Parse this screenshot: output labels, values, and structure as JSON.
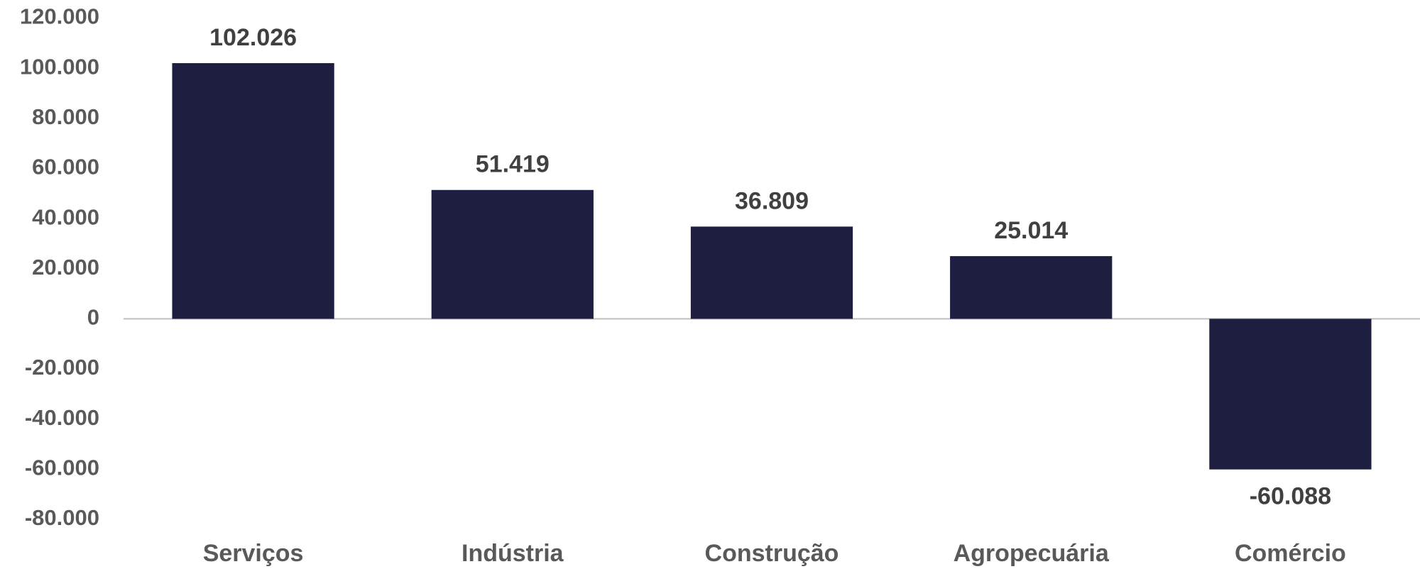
{
  "chart_data": {
    "type": "bar",
    "categories": [
      "Serviços",
      "Indústria",
      "Construção",
      "Agropecuária",
      "Comércio"
    ],
    "values": [
      102026,
      51419,
      36809,
      25014,
      -60088
    ],
    "value_labels": [
      "102.026",
      "51.419",
      "36.809",
      "25.014",
      "-60.088"
    ],
    "color": "#1e1f40",
    "ylim": [
      -80000,
      120000
    ],
    "yticks": [
      {
        "value": 120000,
        "label": "120.000"
      },
      {
        "value": 100000,
        "label": "100.000"
      },
      {
        "value": 80000,
        "label": "80.000"
      },
      {
        "value": 60000,
        "label": "60.000"
      },
      {
        "value": 40000,
        "label": "40.000"
      },
      {
        "value": 20000,
        "label": "20.000"
      },
      0,
      {
        "value": -20000,
        "label": "-20.000"
      },
      {
        "value": -40000,
        "label": "-40.000"
      },
      {
        "value": -60000,
        "label": "-60.000"
      },
      {
        "value": -80000,
        "label": "-80.000"
      }
    ],
    "grid": false
  }
}
